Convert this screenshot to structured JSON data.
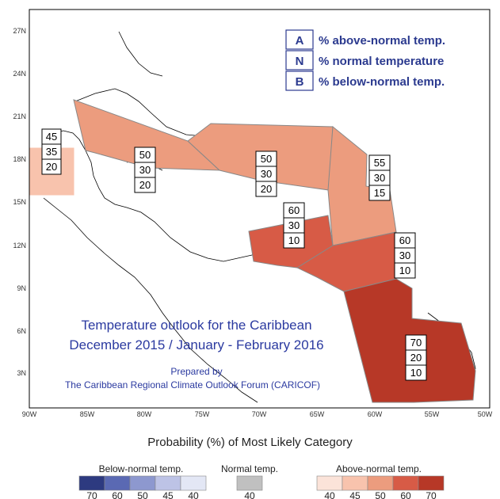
{
  "map": {
    "lon_labels": [
      "90W",
      "85W",
      "80W",
      "75W",
      "70W",
      "65W",
      "60W",
      "55W",
      "50W"
    ],
    "lat_labels": [
      "3N",
      "6N",
      "9N",
      "12N",
      "15N",
      "18N",
      "21N",
      "24N",
      "27N"
    ],
    "title_line1": "Temperature outlook for the Caribbean",
    "title_line2": "December 2015 / January - February 2016",
    "prepared_by": "Prepared by",
    "forum": "The Caribbean Regional Climate Outlook Forum (CARICOF)"
  },
  "key": [
    {
      "letter": "A",
      "desc": "% above-normal temp."
    },
    {
      "letter": "N",
      "desc": "% normal temperature"
    },
    {
      "letter": "B",
      "desc": "% below-normal temp."
    }
  ],
  "regions": [
    {
      "name": "belize-region",
      "above": "45",
      "normal": "35",
      "below": "20",
      "color": "#f8c3ad"
    },
    {
      "name": "bahamas-cuba-region",
      "above": "50",
      "normal": "30",
      "below": "20",
      "color": "#ec9c7e"
    },
    {
      "name": "hispaniola-region",
      "above": "50",
      "normal": "30",
      "below": "20",
      "color": "#ec9c7e"
    },
    {
      "name": "leeward-islands-region",
      "above": "55",
      "normal": "30",
      "below": "15",
      "color": "#ec9c7e"
    },
    {
      "name": "abc-islands-region",
      "above": "60",
      "normal": "30",
      "below": "10",
      "color": "#d75b46"
    },
    {
      "name": "trinidad-region",
      "above": "60",
      "normal": "30",
      "below": "10",
      "color": "#d75b46"
    },
    {
      "name": "guianas-region",
      "above": "70",
      "normal": "20",
      "below": "10",
      "color": "#b73827"
    }
  ],
  "legend": {
    "title": "Probability (%) of Most Likely Category",
    "below_label": "Below-normal temp.",
    "normal_label": "Normal temp.",
    "above_label": "Above-normal temp.",
    "below_colors": [
      "#2d3a80",
      "#5a69b3",
      "#8d98cf",
      "#bdc3e6",
      "#e3e7f5"
    ],
    "below_ticks": [
      "70",
      "60",
      "50",
      "45",
      "40"
    ],
    "normal_colors": [
      "#c0c0c0"
    ],
    "normal_ticks": [
      "40"
    ],
    "above_colors": [
      "#fbe3d9",
      "#f8c3ad",
      "#ec9c7e",
      "#d75b46",
      "#b73827"
    ],
    "above_ticks": [
      "40",
      "45",
      "50",
      "60",
      "70"
    ]
  }
}
